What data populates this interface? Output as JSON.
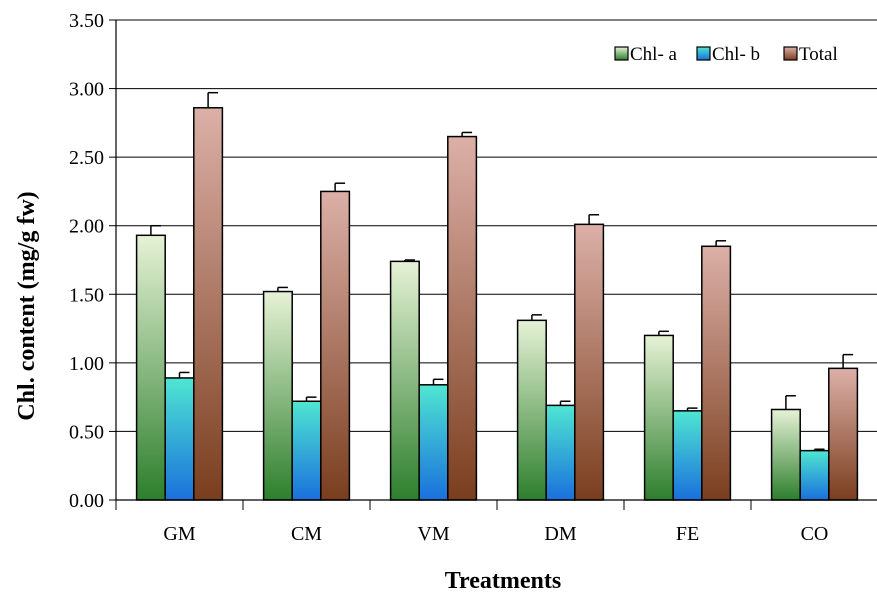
{
  "chart_data": {
    "type": "bar",
    "title": "",
    "xlabel": "Treatments",
    "ylabel": "Chl. content (mg/g fw)",
    "ylim": [
      0,
      3.5
    ],
    "yticks": [
      "0.00",
      "0.50",
      "1.00",
      "1.50",
      "2.00",
      "2.50",
      "3.00",
      "3.50"
    ],
    "grid": true,
    "legend_position": "top-right",
    "categories": [
      "GM",
      "CM",
      "VM",
      "DM",
      "FE",
      "CO"
    ],
    "series": [
      {
        "name": "Chl- a",
        "values": [
          1.93,
          1.52,
          1.74,
          1.31,
          1.2,
          0.66
        ],
        "errors": [
          0.07,
          0.03,
          0.01,
          0.04,
          0.03,
          0.1
        ],
        "colors": [
          "#e6f2d6",
          "#2d7f2d"
        ]
      },
      {
        "name": "Chl- b",
        "values": [
          0.89,
          0.72,
          0.84,
          0.69,
          0.65,
          0.36
        ],
        "errors": [
          0.04,
          0.03,
          0.04,
          0.03,
          0.02,
          0.01
        ],
        "colors": [
          "#4fe6d2",
          "#1a70dc"
        ]
      },
      {
        "name": "Total",
        "values": [
          2.86,
          2.25,
          2.65,
          2.01,
          1.85,
          0.96
        ],
        "errors": [
          0.11,
          0.06,
          0.03,
          0.07,
          0.04,
          0.1
        ],
        "colors": [
          "#dcb0a8",
          "#7a3e1e"
        ]
      }
    ]
  }
}
